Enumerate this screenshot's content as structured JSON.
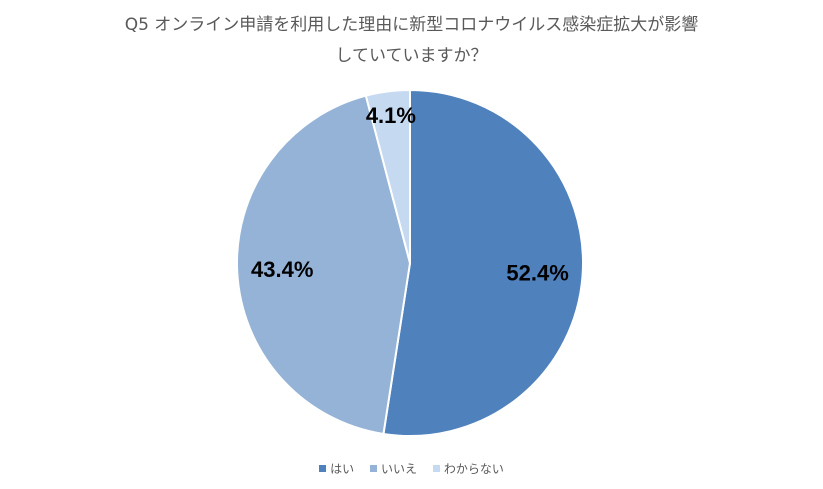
{
  "chart_data": {
    "type": "pie",
    "title_line1": "Q5 オンライン申請を利用した理由に新型コロナウイルス感染症拡大が影響",
    "title_line2": "していていますか？",
    "slices": [
      {
        "name": "はい",
        "value": 52.4,
        "label": "52.4%",
        "color": "#4f81bd"
      },
      {
        "name": "いいえ",
        "value": 43.4,
        "label": "43.4%",
        "color": "#95b3d7"
      },
      {
        "name": "わからない",
        "value": 4.1,
        "label": "4.1%",
        "color": "#c5d9f1"
      }
    ],
    "legend_position": "bottom"
  }
}
